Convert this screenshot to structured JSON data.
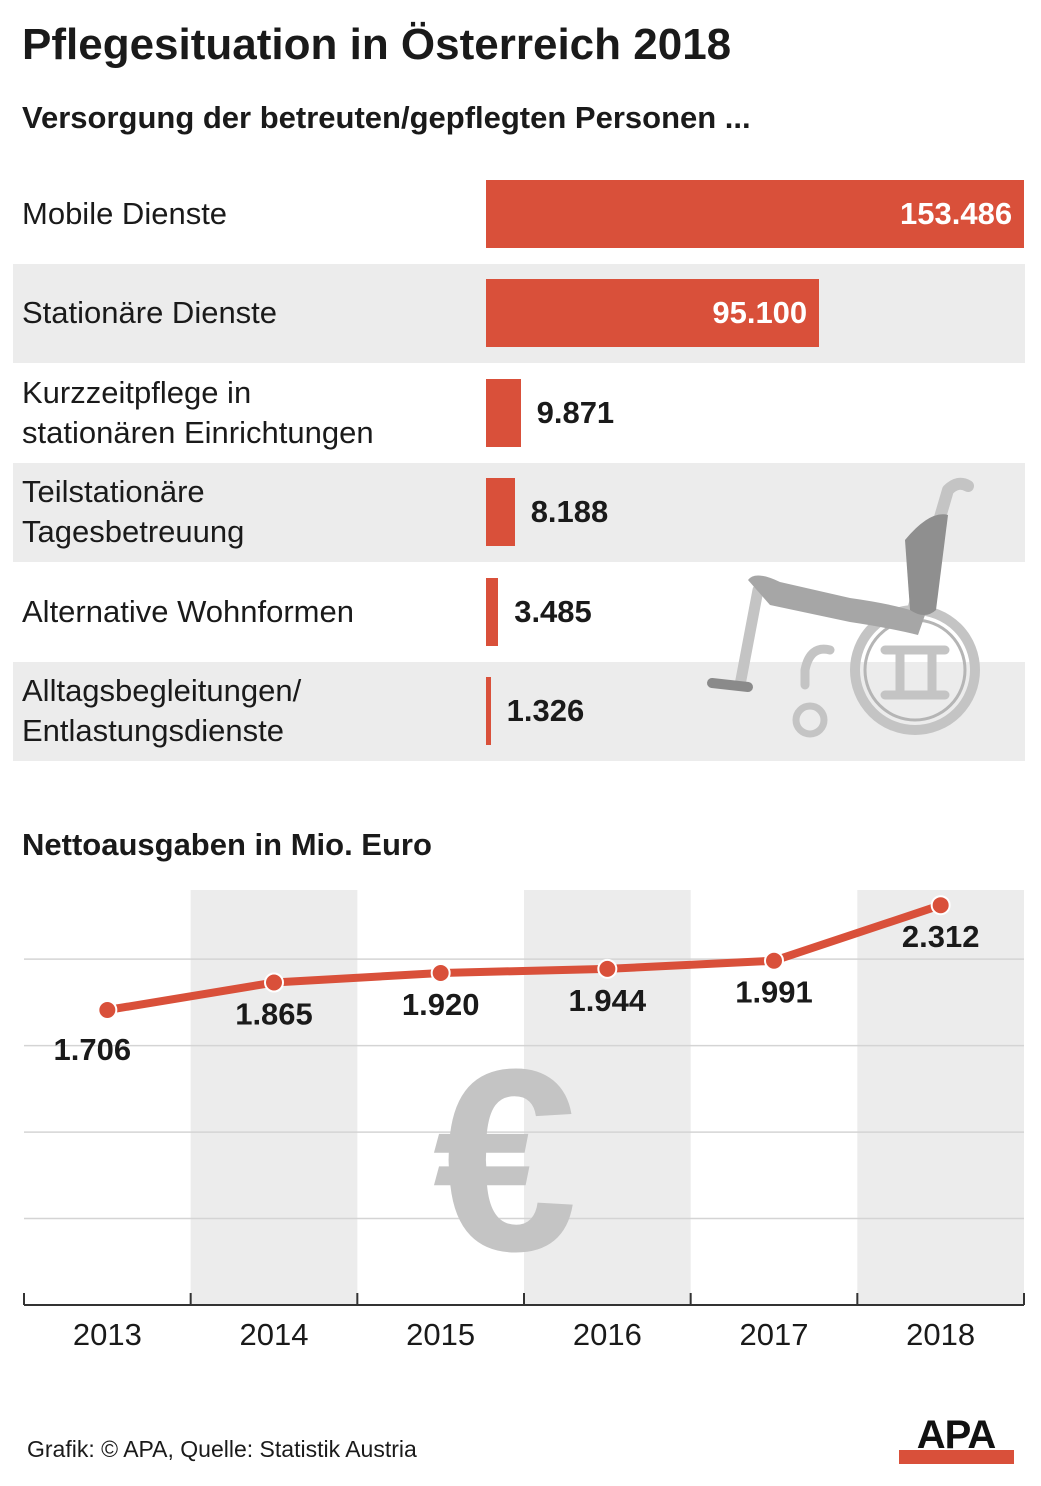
{
  "header": {
    "title": "Pflegesituation in Österreich 2018",
    "subtitle": "Versorgung der betreuten/gepflegten Personen ..."
  },
  "chart_data": [
    {
      "type": "bar",
      "orientation": "horizontal",
      "title": "Versorgung der betreuten/gepflegten Personen ...",
      "categories": [
        "Mobile Dienste",
        "Stationäre Dienste",
        "Kurzzeitpflege in\nstationären Einrichtungen",
        "Teilstationäre\nTagesbetreuung",
        "Alternative Wohnformen",
        "Alltagsbegleitungen/\nEntlastungsdienste"
      ],
      "values": [
        153486,
        95100,
        9871,
        8188,
        3485,
        1326
      ],
      "value_labels": [
        "153.486",
        "95.100",
        "9.871",
        "8.188",
        "3.485",
        "1.326"
      ],
      "bar_color": "#d9503a",
      "xlim": [
        0,
        153486
      ]
    },
    {
      "type": "line",
      "title": "Nettoausgaben in Mio. Euro",
      "x": [
        "2013",
        "2014",
        "2015",
        "2016",
        "2017",
        "2018"
      ],
      "values": [
        1706,
        1865,
        1920,
        1944,
        1991,
        2312
      ],
      "value_labels": [
        "1.706",
        "1.865",
        "1.920",
        "1.944",
        "1.991",
        "2.312"
      ],
      "line_color": "#d9503a",
      "ylim": [
        0,
        2400
      ],
      "grid": true
    }
  ],
  "decorations": {
    "wheelchair_icon": "wheelchair-icon",
    "euro_symbol": "€"
  },
  "footer": {
    "source": "Grafik: © APA, Quelle: Statistik Austria",
    "logo_text": "APA"
  },
  "colors": {
    "accent": "#d9503a",
    "row_background": "#ececec",
    "icon_gray": "#c4c4c4"
  }
}
